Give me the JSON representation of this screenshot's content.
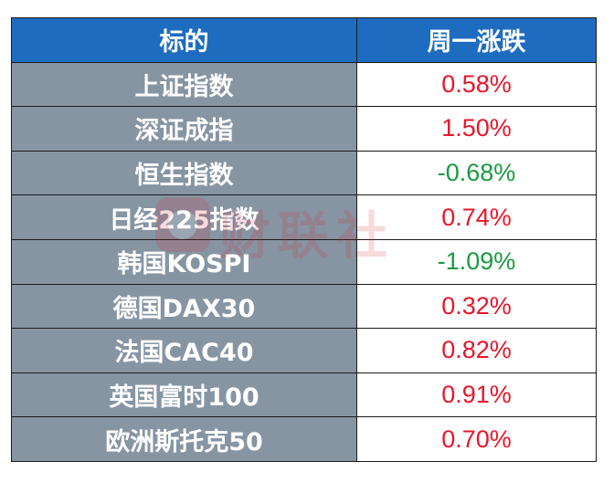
{
  "header": {
    "col1": "标的",
    "col2": "周一涨跌"
  },
  "rows": [
    {
      "name": "上证指数",
      "change": "0.58%",
      "direction": "up"
    },
    {
      "name": "深证成指",
      "change": "1.50%",
      "direction": "up"
    },
    {
      "name": "恒生指数",
      "change": "-0.68%",
      "direction": "down"
    },
    {
      "name": "日经225指数",
      "change": "0.74%",
      "direction": "up"
    },
    {
      "name": "韩国KOSPI",
      "change": "-1.09%",
      "direction": "down"
    },
    {
      "name": "德国DAX30",
      "change": "0.32%",
      "direction": "up"
    },
    {
      "name": "法国CAC40",
      "change": "0.82%",
      "direction": "up"
    },
    {
      "name": "英国富时100",
      "change": "0.91%",
      "direction": "up"
    },
    {
      "name": "欧洲斯托克50",
      "change": "0.70%",
      "direction": "up"
    }
  ],
  "colors": {
    "header_bg": "#1e6cc0",
    "name_bg": "#8795a3",
    "up": "#e8162b",
    "down": "#1a9a42"
  },
  "watermark": {
    "icon": "cls-logo-icon",
    "text": "财联社"
  }
}
